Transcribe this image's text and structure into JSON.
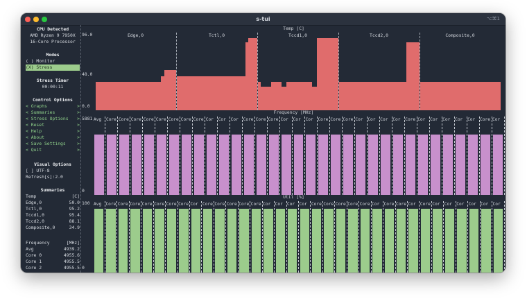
{
  "window": {
    "title": "s-tui",
    "shortcut": "⌥⌘1"
  },
  "sidebar": {
    "cpu_detected_title": "CPU Detected",
    "cpu_model_line1": "AMD Ryzen 9 7950X",
    "cpu_model_line2": "16-Core Processor",
    "modes_title": "Modes",
    "mode_monitor": "( ) Monitor",
    "mode_stress": "(X) Stress",
    "stress_timer_title": "Stress Timer",
    "stress_timer_value": "00:00:11",
    "control_options_title": "Control Options",
    "control_items": [
      {
        "left": "<",
        "label": "Graphs",
        "right": ">"
      },
      {
        "left": "<",
        "label": "Summaries",
        "right": ">"
      },
      {
        "left": "<",
        "label": "Stress Options",
        "right": ">"
      },
      {
        "left": "<",
        "label": "Reset",
        "right": ">"
      },
      {
        "left": "<",
        "label": "Help",
        "right": ">"
      },
      {
        "left": "<",
        "label": "About",
        "right": ">"
      },
      {
        "left": "<",
        "label": "Save Settings",
        "right": ">"
      },
      {
        "left": "<",
        "label": "Quit",
        "right": ">"
      }
    ],
    "visual_options_title": "Visual Options",
    "utf8_option": "[ ] UTF-8",
    "refresh_option": "Refresh[s]:2.0",
    "summaries_title": "Summaries",
    "temp_header": {
      "label": "Temp",
      "unit": "[C]"
    },
    "temp_rows": [
      {
        "label": "Edge,0",
        "value": "50.0"
      },
      {
        "label": "Tctl,0",
        "value": "95.2"
      },
      {
        "label": "Tccd1,0",
        "value": "95.4"
      },
      {
        "label": "Tccd2,0",
        "value": "88.1"
      },
      {
        "label": "Composite,0",
        "value": "34.9"
      }
    ],
    "freq_header": {
      "label": "Frequency",
      "unit": "[MHz]"
    },
    "freq_rows": [
      {
        "label": "Avg",
        "value": "4939.2"
      },
      {
        "label": "Core 0",
        "value": "4955.6"
      },
      {
        "label": "Core 1",
        "value": "4955.5"
      },
      {
        "label": "Core 2",
        "value": "4955.5"
      }
    ]
  },
  "temp_graph": {
    "title": "Temp [C]",
    "y_max": "96.0",
    "y_mid": "48.0",
    "y_min": "0.0",
    "sensors": [
      {
        "name": "Edge,0",
        "heights": [
          0.39,
          0.39,
          0.39,
          0.39,
          0.39,
          0.39,
          0.39,
          0.39,
          0.39,
          0.39,
          0.39,
          0.39,
          0.39,
          0.39,
          0.39,
          0.39,
          0.39,
          0.39,
          0.47,
          0.56,
          0.56,
          0.56
        ]
      },
      {
        "name": "Tctl,0",
        "heights": [
          0.47,
          0.47,
          0.47,
          0.47,
          0.47,
          0.47,
          0.47,
          0.47,
          0.47,
          0.47,
          0.47,
          0.47,
          0.47,
          0.47,
          0.47,
          0.47,
          0.47,
          0.47,
          0.47,
          0.47,
          0.47,
          0.47,
          0.47,
          0.47,
          0.47,
          0.47,
          0.47,
          0.47,
          0.47,
          0.47,
          0.47,
          0.47,
          0.47,
          0.47,
          0.47,
          0.47,
          0.47,
          0.47,
          0.47,
          0.47,
          0.47,
          0.47,
          0.94,
          0.94,
          1.0,
          1.0,
          1.0,
          1.0,
          1.0
        ]
      },
      {
        "name": "Tccd1,0",
        "heights": [
          0.39,
          0.33,
          0.33,
          0.33,
          0.33,
          0.39,
          0.39,
          0.39,
          0.39,
          0.33,
          0.33,
          0.39,
          0.39,
          0.39,
          0.39,
          0.39,
          0.39,
          0.39,
          0.39,
          0.39,
          0.39,
          0.33,
          0.33,
          1.0,
          1.0,
          1.0,
          1.0,
          1.0,
          1.0,
          1.0,
          1.0
        ]
      },
      {
        "name": "Tccd2,0",
        "heights": [
          0.39,
          0.33,
          0.39,
          0.39,
          0.39,
          0.39,
          0.39,
          0.39,
          0.39,
          0.39,
          0.39,
          0.39,
          0.39,
          0.39,
          0.39,
          0.39,
          0.39,
          0.39,
          0.39,
          0.39,
          0.39,
          0.39,
          0.39,
          0.39,
          0.39,
          0.39,
          0.39,
          0.39,
          0.39,
          0.39,
          0.39,
          0.39,
          0.39,
          0.39,
          0.39,
          0.39,
          0.39,
          0.39,
          0.39,
          0.39,
          0.39,
          0.39,
          0.39,
          0.39,
          0.39,
          0.39,
          0.39,
          0.39,
          0.39,
          0.39,
          0.39,
          0.39,
          0.39,
          0.39,
          0.39,
          0.39,
          0.39,
          0.39,
          0.39,
          0.39,
          0.39,
          0.39,
          0.39,
          0.39,
          0.39,
          0.39,
          0.39,
          0.39,
          0.39,
          0.39,
          0.39,
          0.39,
          0.39,
          0.39,
          0.39,
          0.39,
          0.39,
          0.39,
          0.39,
          0.39,
          0.39,
          0.39,
          0.39,
          0.39,
          0.94,
          0.94,
          0.94,
          0.94,
          0.94,
          0.94,
          0.94,
          0.94,
          0.94,
          0.94,
          0.94,
          0.94,
          0.94,
          0.94,
          0.94,
          0.94
        ]
      },
      {
        "name": "Composite,0",
        "heights": [
          0.39
        ]
      }
    ]
  },
  "freq_graph": {
    "title": "Frequency [MHz]",
    "y_max": "5881",
    "y_min": "0",
    "columns": [
      "Avg",
      "Core",
      "Core",
      "Core",
      "Core",
      "Core",
      "Core",
      "Core",
      "Core",
      "Cor",
      "Cor",
      "Cor",
      "Core",
      "Core",
      "Core",
      "Cor",
      "Cor",
      "Cor",
      "Core",
      "Core",
      "Core",
      "Cor",
      "Cor",
      "Cor",
      "Cor",
      "Core",
      "Cor",
      "Cor",
      "Cor",
      "Cor",
      "Cor",
      "Core",
      "Cor"
    ],
    "level": 0.84
  },
  "util_graph": {
    "title": "Util [%]",
    "y_max": "100",
    "y_min": "0",
    "columns": [
      "Avg",
      "Core",
      "Core",
      "Core",
      "Core",
      "Core",
      "Core",
      "Core",
      "Cor",
      "Core",
      "Core",
      "Core",
      "Core",
      "Core",
      "Cor",
      "Cor",
      "Cor",
      "Cor",
      "Core",
      "Core",
      "Core",
      "Core",
      "Core",
      "Cor",
      "Core",
      "Core",
      "Cor",
      "Core",
      "Cor",
      "Cor",
      "Cor",
      "Cor",
      "Cor",
      "Cor"
    ],
    "level": 0.98
  },
  "colors": {
    "temp": "#e06c6c",
    "freq": "#c890cc",
    "util": "#9ccc8c",
    "bg": "#232a36"
  }
}
